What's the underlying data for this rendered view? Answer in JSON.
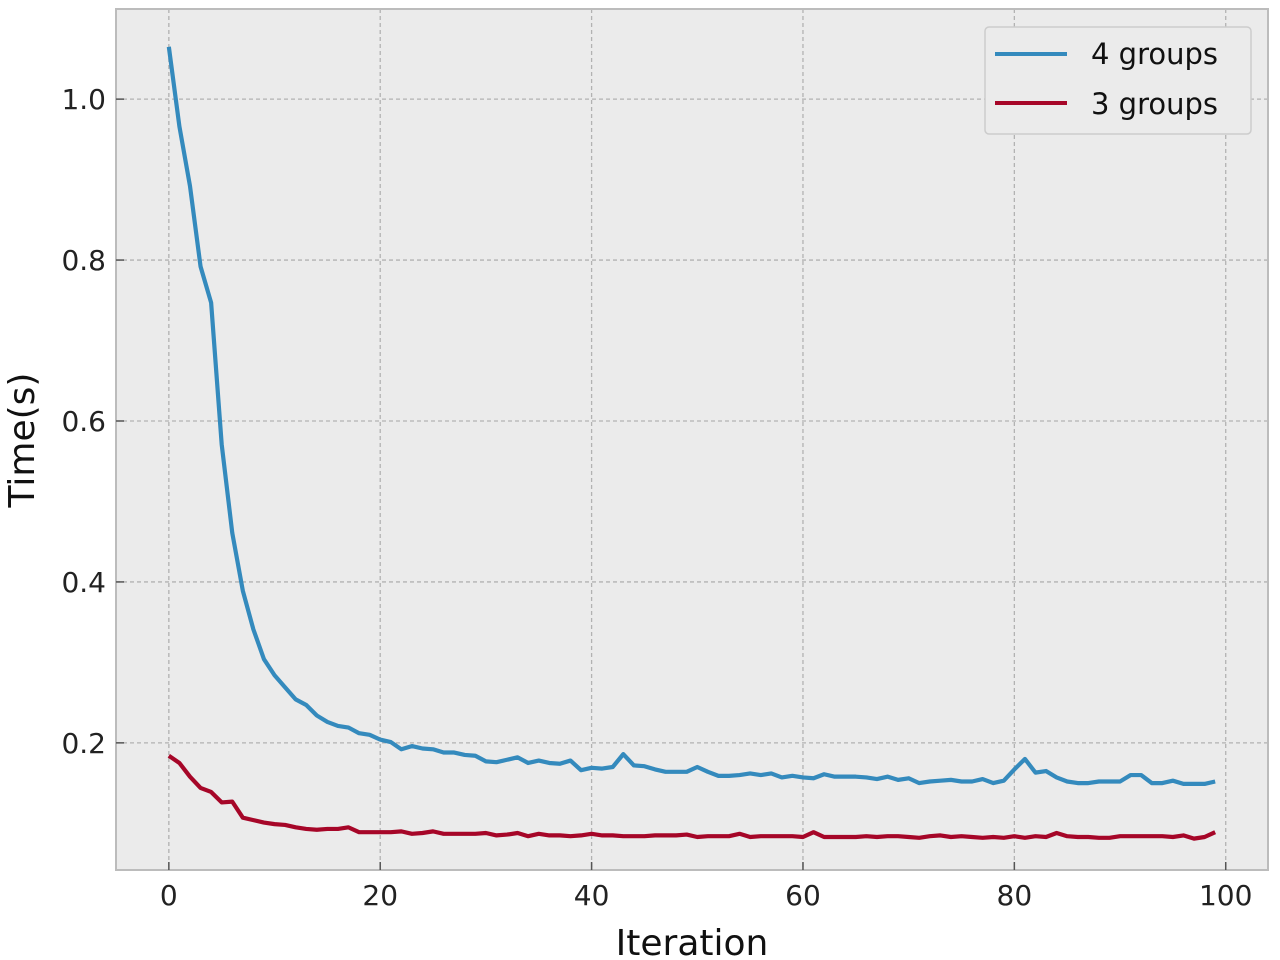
{
  "chart_data": {
    "type": "line",
    "title": "",
    "xlabel": "Iteration",
    "ylabel": "Time(s)",
    "xlim": [
      -5,
      104
    ],
    "ylim": [
      0.042,
      1.112
    ],
    "xticks": [
      0,
      20,
      40,
      60,
      80,
      100
    ],
    "xtick_labels": [
      "0",
      "20",
      "40",
      "60",
      "80",
      "100"
    ],
    "yticks": [
      0.2,
      0.4,
      0.6,
      0.8,
      1.0
    ],
    "ytick_labels": [
      "0.2",
      "0.4",
      "0.6",
      "0.8",
      "1.0"
    ],
    "grid": true,
    "legend_position": "top-right",
    "series": [
      {
        "name": "4 groups",
        "color": "#348ABD",
        "x": [
          0,
          1,
          2,
          3,
          4,
          5,
          6,
          7,
          8,
          9,
          10,
          11,
          12,
          13,
          14,
          15,
          16,
          17,
          18,
          19,
          20,
          21,
          22,
          23,
          24,
          25,
          26,
          27,
          28,
          29,
          30,
          31,
          32,
          33,
          34,
          35,
          36,
          37,
          38,
          39,
          40,
          41,
          42,
          43,
          44,
          45,
          46,
          47,
          48,
          49,
          50,
          51,
          52,
          53,
          54,
          55,
          56,
          57,
          58,
          59,
          60,
          61,
          62,
          63,
          64,
          65,
          66,
          67,
          68,
          69,
          70,
          71,
          72,
          73,
          74,
          75,
          76,
          77,
          78,
          79,
          80,
          81,
          82,
          83,
          84,
          85,
          86,
          87,
          88,
          89,
          90,
          91,
          92,
          93,
          94,
          95,
          96,
          97,
          98,
          99
        ],
        "values": [
          1.065,
          0.966,
          0.892,
          0.792,
          0.747,
          0.571,
          0.461,
          0.389,
          0.341,
          0.304,
          0.284,
          0.269,
          0.254,
          0.247,
          0.234,
          0.226,
          0.221,
          0.219,
          0.212,
          0.21,
          0.204,
          0.201,
          0.192,
          0.196,
          0.193,
          0.192,
          0.188,
          0.188,
          0.185,
          0.184,
          0.177,
          0.176,
          0.179,
          0.182,
          0.175,
          0.178,
          0.175,
          0.174,
          0.178,
          0.166,
          0.169,
          0.168,
          0.17,
          0.186,
          0.172,
          0.171,
          0.167,
          0.164,
          0.164,
          0.164,
          0.17,
          0.164,
          0.159,
          0.159,
          0.16,
          0.162,
          0.16,
          0.162,
          0.157,
          0.159,
          0.157,
          0.156,
          0.161,
          0.158,
          0.158,
          0.158,
          0.157,
          0.155,
          0.158,
          0.154,
          0.156,
          0.15,
          0.152,
          0.153,
          0.154,
          0.152,
          0.152,
          0.155,
          0.15,
          0.153,
          0.167,
          0.18,
          0.163,
          0.165,
          0.157,
          0.152,
          0.15,
          0.15,
          0.152,
          0.152,
          0.152,
          0.16,
          0.16,
          0.15,
          0.15,
          0.153,
          0.149,
          0.149,
          0.149,
          0.152
        ]
      },
      {
        "name": "3 groups",
        "color": "#A60628",
        "x": [
          0,
          1,
          2,
          3,
          4,
          5,
          6,
          7,
          8,
          9,
          10,
          11,
          12,
          13,
          14,
          15,
          16,
          17,
          18,
          19,
          20,
          21,
          22,
          23,
          24,
          25,
          26,
          27,
          28,
          29,
          30,
          31,
          32,
          33,
          34,
          35,
          36,
          37,
          38,
          39,
          40,
          41,
          42,
          43,
          44,
          45,
          46,
          47,
          48,
          49,
          50,
          51,
          52,
          53,
          54,
          55,
          56,
          57,
          58,
          59,
          60,
          61,
          62,
          63,
          64,
          65,
          66,
          67,
          68,
          69,
          70,
          71,
          72,
          73,
          74,
          75,
          76,
          77,
          78,
          79,
          80,
          81,
          82,
          83,
          84,
          85,
          86,
          87,
          88,
          89,
          90,
          91,
          92,
          93,
          94,
          95,
          96,
          97,
          98,
          99
        ],
        "values": [
          0.184,
          0.175,
          0.158,
          0.144,
          0.139,
          0.126,
          0.127,
          0.107,
          0.104,
          0.101,
          0.099,
          0.098,
          0.095,
          0.093,
          0.092,
          0.093,
          0.093,
          0.095,
          0.089,
          0.089,
          0.089,
          0.089,
          0.09,
          0.087,
          0.088,
          0.09,
          0.087,
          0.087,
          0.087,
          0.087,
          0.088,
          0.085,
          0.086,
          0.088,
          0.084,
          0.087,
          0.085,
          0.085,
          0.084,
          0.085,
          0.087,
          0.085,
          0.085,
          0.084,
          0.084,
          0.084,
          0.085,
          0.085,
          0.085,
          0.086,
          0.083,
          0.084,
          0.084,
          0.084,
          0.087,
          0.083,
          0.084,
          0.084,
          0.084,
          0.084,
          0.083,
          0.089,
          0.083,
          0.083,
          0.083,
          0.083,
          0.084,
          0.083,
          0.084,
          0.084,
          0.083,
          0.082,
          0.084,
          0.085,
          0.083,
          0.084,
          0.083,
          0.082,
          0.083,
          0.082,
          0.084,
          0.082,
          0.084,
          0.083,
          0.088,
          0.084,
          0.083,
          0.083,
          0.082,
          0.082,
          0.084,
          0.084,
          0.084,
          0.084,
          0.084,
          0.083,
          0.085,
          0.081,
          0.083,
          0.089
        ]
      }
    ]
  }
}
